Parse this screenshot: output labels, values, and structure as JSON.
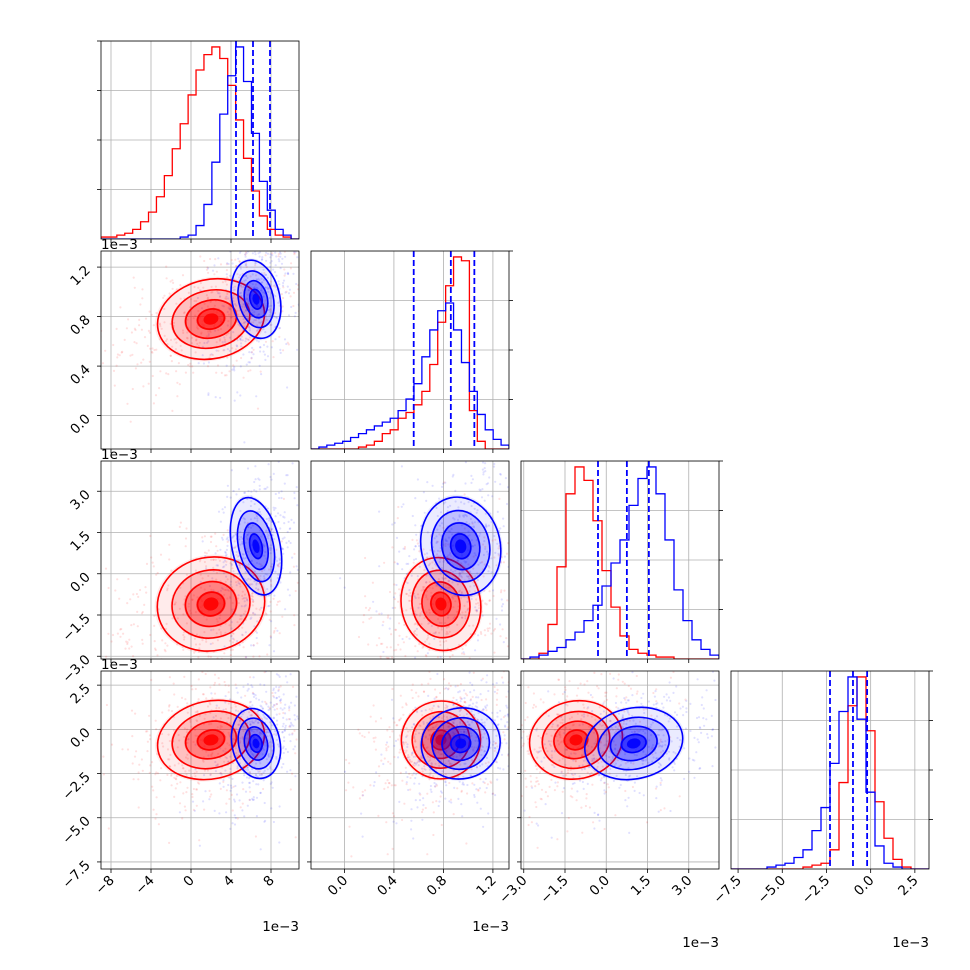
{
  "chart_data": {
    "type": "corner",
    "grid": true,
    "parameters": [
      {
        "ticks": [
          -8,
          -4,
          0,
          4,
          8
        ],
        "tick_labels": [
          "−8",
          "−4",
          "0",
          "4",
          "8"
        ],
        "range": [
          -9.0,
          10.8
        ],
        "exponent": "1e−3",
        "quantiles": [
          4.5,
          6.2,
          7.9
        ]
      },
      {
        "ticks": [
          0.0,
          0.4,
          0.8,
          1.2
        ],
        "tick_labels": [
          "0.0",
          "0.4",
          "0.8",
          "1.2"
        ],
        "range": [
          -0.27,
          1.33
        ],
        "exponent": "1e−3",
        "quantiles": [
          0.56,
          0.86,
          1.05
        ]
      },
      {
        "ticks": [
          -3.0,
          -1.5,
          0.0,
          1.5,
          3.0
        ],
        "tick_labels": [
          "−3.0",
          "−1.5",
          "0.0",
          "1.5",
          "3.0"
        ],
        "range": [
          -3.1,
          4.1
        ],
        "exponent": "1e−3",
        "quantiles": [
          -0.3,
          0.75,
          1.55
        ]
      },
      {
        "ticks": [
          -7.5,
          -5.0,
          -2.5,
          0.0,
          2.5
        ],
        "tick_labels": [
          "−7.5",
          "−5.0",
          "−2.5",
          "0.0",
          "2.5"
        ],
        "range": [
          -7.9,
          3.3
        ],
        "exponent": "1e−3",
        "quantiles": [
          -2.3,
          -1.0,
          -0.2
        ]
      }
    ],
    "series": [
      {
        "color": "#ff0000",
        "means": [
          2.0,
          0.78,
          -1.1,
          -0.6
        ],
        "sds": [
          2.7,
          0.16,
          0.85,
          1.1
        ],
        "hist1d": [
          [
            0.01,
            0.01,
            0.02,
            0.03,
            0.05,
            0.09,
            0.14,
            0.22,
            0.33,
            0.47,
            0.6,
            0.75,
            0.88,
            0.96,
            1.0,
            0.94,
            0.8,
            0.62,
            0.42,
            0.25,
            0.12,
            0.05,
            0.02,
            0.01,
            0.0
          ],
          [
            0.0,
            0.0,
            0.0,
            0.0,
            0.0,
            0.0,
            0.01,
            0.02,
            0.04,
            0.08,
            0.1,
            0.16,
            0.19,
            0.23,
            0.3,
            0.44,
            0.66,
            0.85,
            1.0,
            0.98,
            0.2,
            0.04,
            0.0,
            0.0,
            0.0
          ],
          [
            0.0,
            0.0,
            0.03,
            0.18,
            0.48,
            0.86,
            1.0,
            0.93,
            0.72,
            0.46,
            0.27,
            0.12,
            0.05,
            0.03,
            0.02,
            0.01,
            0.01,
            0.0,
            0.0,
            0.0,
            0.0,
            0.0
          ],
          [
            0.0,
            0.0,
            0.0,
            0.0,
            0.0,
            0.0,
            0.0,
            0.0,
            0.01,
            0.02,
            0.03,
            0.1,
            0.45,
            0.85,
            1.0,
            0.72,
            0.35,
            0.16,
            0.05,
            0.01,
            0.0,
            0.0
          ]
        ]
      },
      {
        "color": "#0000ff",
        "means": [
          6.5,
          0.94,
          1.0,
          -0.8
        ],
        "sds": [
          1.2,
          0.16,
          0.9,
          1.0
        ],
        "hist1d": [
          [
            0.0,
            0.0,
            0.0,
            0.0,
            0.0,
            0.0,
            0.0,
            0.0,
            0.0,
            0.0,
            0.01,
            0.02,
            0.07,
            0.18,
            0.4,
            0.65,
            0.85,
            1.0,
            0.82,
            0.55,
            0.3,
            0.15,
            0.05,
            0.02,
            0.0
          ],
          [
            0.0,
            0.01,
            0.02,
            0.03,
            0.04,
            0.06,
            0.08,
            0.1,
            0.12,
            0.14,
            0.16,
            0.2,
            0.26,
            0.34,
            0.48,
            0.62,
            0.72,
            0.76,
            0.62,
            0.45,
            0.3,
            0.18,
            0.1,
            0.05,
            0.02
          ],
          [
            0.0,
            0.01,
            0.02,
            0.04,
            0.06,
            0.1,
            0.14,
            0.2,
            0.28,
            0.38,
            0.5,
            0.62,
            0.8,
            0.94,
            1.0,
            0.86,
            0.62,
            0.36,
            0.2,
            0.1,
            0.05,
            0.02
          ],
          [
            0.0,
            0.0,
            0.0,
            0.0,
            0.01,
            0.02,
            0.03,
            0.06,
            0.1,
            0.2,
            0.32,
            0.55,
            0.82,
            1.0,
            0.78,
            0.4,
            0.12,
            0.03,
            0.01,
            0.0,
            0.0,
            0.0
          ]
        ]
      }
    ]
  }
}
